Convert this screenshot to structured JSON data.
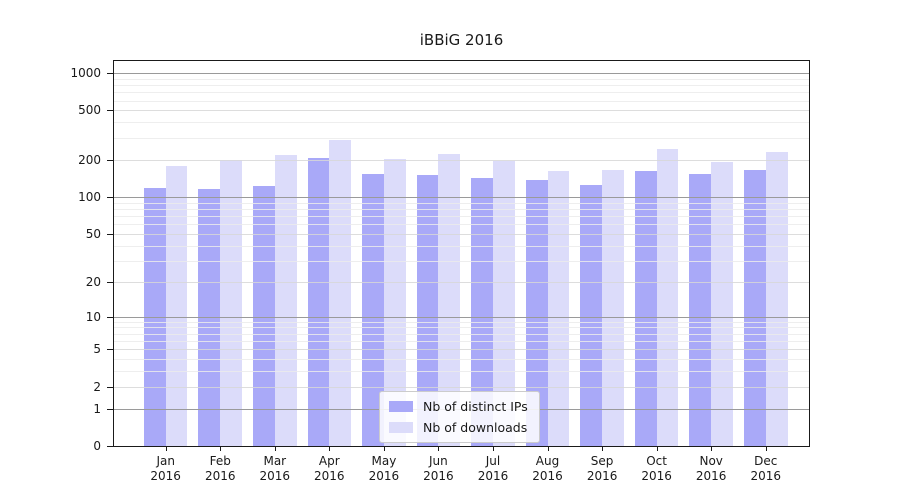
{
  "title": "iBBiG 2016",
  "chart_data": {
    "type": "bar",
    "title": "iBBiG 2016",
    "categories": [
      "Jan 2016",
      "Feb 2016",
      "Mar 2016",
      "Apr 2016",
      "May 2016",
      "Jun 2016",
      "Jul 2016",
      "Aug 2016",
      "Sep 2016",
      "Oct 2016",
      "Nov 2016",
      "Dec 2016"
    ],
    "series": [
      {
        "name": "Nb of distinct IPs",
        "color": "#a9a9f8",
        "values": [
          118,
          116,
          122,
          207,
          153,
          150,
          141,
          138,
          125,
          162,
          152,
          165
        ]
      },
      {
        "name": "Nb of downloads",
        "color": "#dcdcfa",
        "values": [
          178,
          198,
          218,
          290,
          204,
          222,
          194,
          162,
          166,
          242,
          193,
          231
        ]
      }
    ],
    "yscale": "log1p",
    "yticks": [
      0,
      1,
      2,
      5,
      10,
      20,
      50,
      100,
      200,
      500,
      1000
    ],
    "major_ticks": [
      1,
      10,
      100,
      1000
    ],
    "ylim": [
      0,
      1150
    ],
    "xlabel": "",
    "ylabel": "",
    "grid": "horizontal",
    "legend_position": "lower center"
  }
}
